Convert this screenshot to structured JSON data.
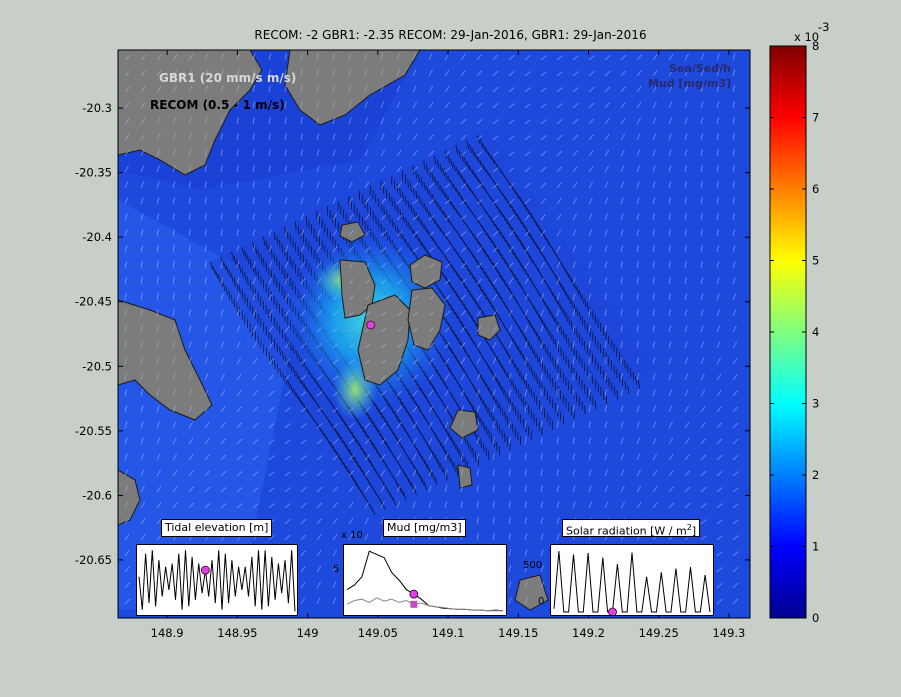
{
  "title": "RECOM: -2 GBR1: -2.35 RECOM: 29-Jan-2016, GBR1: 29-Jan-2016",
  "legend": {
    "gbr1": "GBR1   (20 mm/s m/s)",
    "recom": "RECOM  (0.5 - 1 m/s)",
    "var_line1": "Sea/Sed/h",
    "var_line2": "Mud [mg/m3]"
  },
  "chart_data": {
    "type": "heatmap",
    "xlim": [
      148.865,
      149.315
    ],
    "ylim": [
      -20.695,
      -20.255
    ],
    "x_ticks": [
      148.9,
      148.95,
      149,
      149.05,
      149.1,
      149.15,
      149.2,
      149.25,
      149.3
    ],
    "x_tick_labels": [
      "148.9",
      "148.95",
      "149",
      "149.05",
      "149.1",
      "149.15",
      "149.2",
      "149.25",
      "149.3"
    ],
    "y_ticks": [
      -20.3,
      -20.35,
      -20.4,
      -20.45,
      -20.5,
      -20.55,
      -20.6,
      -20.65
    ],
    "y_tick_labels": [
      "-20.3",
      "-20.35",
      "-20.4",
      "-20.45",
      "-20.5",
      "-20.55",
      "-20.6",
      "-20.65"
    ],
    "colorbar": {
      "range": [
        0,
        8
      ],
      "ticks": [
        0,
        1,
        2,
        3,
        4,
        5,
        6,
        7,
        8
      ],
      "tick_labels": [
        "0",
        "1",
        "2",
        "3",
        "4",
        "5",
        "6",
        "7",
        "8"
      ],
      "exponent_label": "x 10",
      "exponent_power": "-3",
      "colormap": "jet"
    },
    "site_marker": {
      "x": 149.045,
      "y": -20.468,
      "color": "#e040e0"
    },
    "insets": [
      {
        "title": "Tidal elevation [m]",
        "type": "line",
        "marker_color": "#e040e0",
        "series": [
          {
            "values": [
              0.1,
              -0.9,
              0.8,
              -0.7,
              0.9,
              -0.8,
              0.6,
              -0.5,
              0.4,
              -0.3,
              0.5,
              -0.6,
              0.8,
              -0.9,
              0.9,
              -0.8,
              0.7,
              -0.6,
              0.5,
              -0.4,
              0.3,
              -0.5,
              0.6,
              -0.7,
              0.9,
              -0.9,
              0.8,
              -0.7,
              0.6,
              -0.5,
              0.4,
              -0.3,
              0.4,
              -0.5,
              0.7,
              -0.8,
              0.9,
              -0.9,
              0.9,
              -0.8,
              0.7,
              -0.6,
              0.5,
              -0.4,
              0.6,
              -0.7,
              0.9,
              -0.95
            ]
          }
        ],
        "marker_index": 20
      },
      {
        "title": "Mud [mg/m3]",
        "type": "line",
        "exponent_label": "x 10",
        "tick_labels": [
          "5"
        ],
        "series": [
          {
            "values": [
              0.35,
              0.42,
              0.55,
              0.95,
              0.9,
              0.85,
              0.62,
              0.5,
              0.35,
              0.28,
              0.2,
              0.1,
              0.08,
              0.06,
              0.05,
              0.04,
              0.04,
              0.03,
              0.03,
              0.02,
              0.03,
              0.02
            ]
          },
          {
            "values": [
              0.12,
              0.18,
              0.2,
              0.15,
              0.22,
              0.17,
              0.2,
              0.15,
              0.18,
              0.12,
              0.14,
              0.1,
              0.08,
              0.07,
              0.05,
              0.04,
              0.04,
              0.03,
              0.03,
              0.02,
              0.02,
              0.02
            ]
          }
        ],
        "marker_index": 9,
        "marker_colors": [
          "#e040e0",
          "#c050c0"
        ]
      },
      {
        "title": "Solar radiation [W / m",
        "title_superscript": "2",
        "title_end": "]",
        "type": "line",
        "tick_labels": [
          "500",
          "0"
        ],
        "series": [
          {
            "values": [
              0.05,
              0.95,
              0.0,
              0.0,
              0.9,
              0.0,
              0.0,
              0.92,
              0.0,
              0.0,
              0.85,
              0.0,
              0.0,
              0.75,
              0.0,
              0.0,
              0.93,
              0.0,
              0.0,
              0.55,
              0.0,
              0.0,
              0.62,
              0.0,
              0.0,
              0.68,
              0.0,
              0.0,
              0.7,
              0.0,
              0.0,
              0.58,
              0.0
            ]
          }
        ],
        "marker_index": 12
      }
    ]
  }
}
